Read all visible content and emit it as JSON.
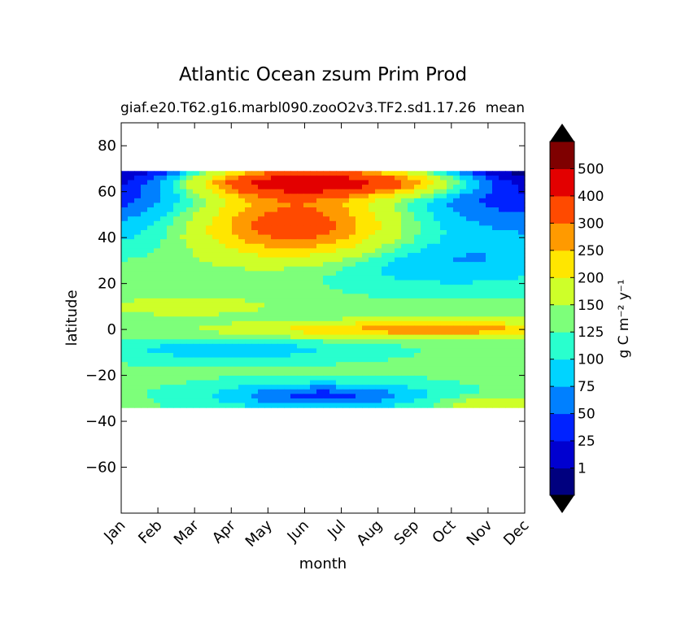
{
  "chart_data": {
    "type": "heatmap",
    "title": "Atlantic Ocean zsum Prim Prod",
    "subtitle_left": "giaf.e20.T62.g16.marbl090.zooO2v3.TF2.sd1.17.26",
    "subtitle_right": "mean",
    "xlabel": "month",
    "ylabel": "latitude",
    "x_categories": [
      "Jan",
      "Feb",
      "Mar",
      "Apr",
      "May",
      "Jun",
      "Jul",
      "Aug",
      "Sep",
      "Oct",
      "Nov",
      "Dec"
    ],
    "ylim": [
      -80,
      90
    ],
    "y_ticks": [
      80,
      60,
      40,
      20,
      0,
      -20,
      -40,
      -60
    ],
    "y_tick_labels": [
      "80",
      "60",
      "40",
      "20",
      "0",
      "−20",
      "−40",
      "−60"
    ],
    "data_lat_range": [
      -34,
      69
    ],
    "colorbar": {
      "label": "g C m⁻² y⁻¹",
      "levels": [
        0,
        1,
        25,
        50,
        75,
        100,
        125,
        150,
        200,
        250,
        300,
        400,
        500,
        600
      ],
      "tick_labels": [
        "1",
        "25",
        "50",
        "75",
        "100",
        "125",
        "150",
        "200",
        "250",
        "300",
        "400",
        "500"
      ],
      "colors": [
        "#00007f",
        "#0000d0",
        "#0022ff",
        "#0080ff",
        "#00d4ff",
        "#29ffce",
        "#7dff7a",
        "#ceff29",
        "#ffe600",
        "#ff9a00",
        "#ff4a00",
        "#e30000",
        "#7f0000"
      ],
      "extend": "both"
    },
    "grid": false
  }
}
